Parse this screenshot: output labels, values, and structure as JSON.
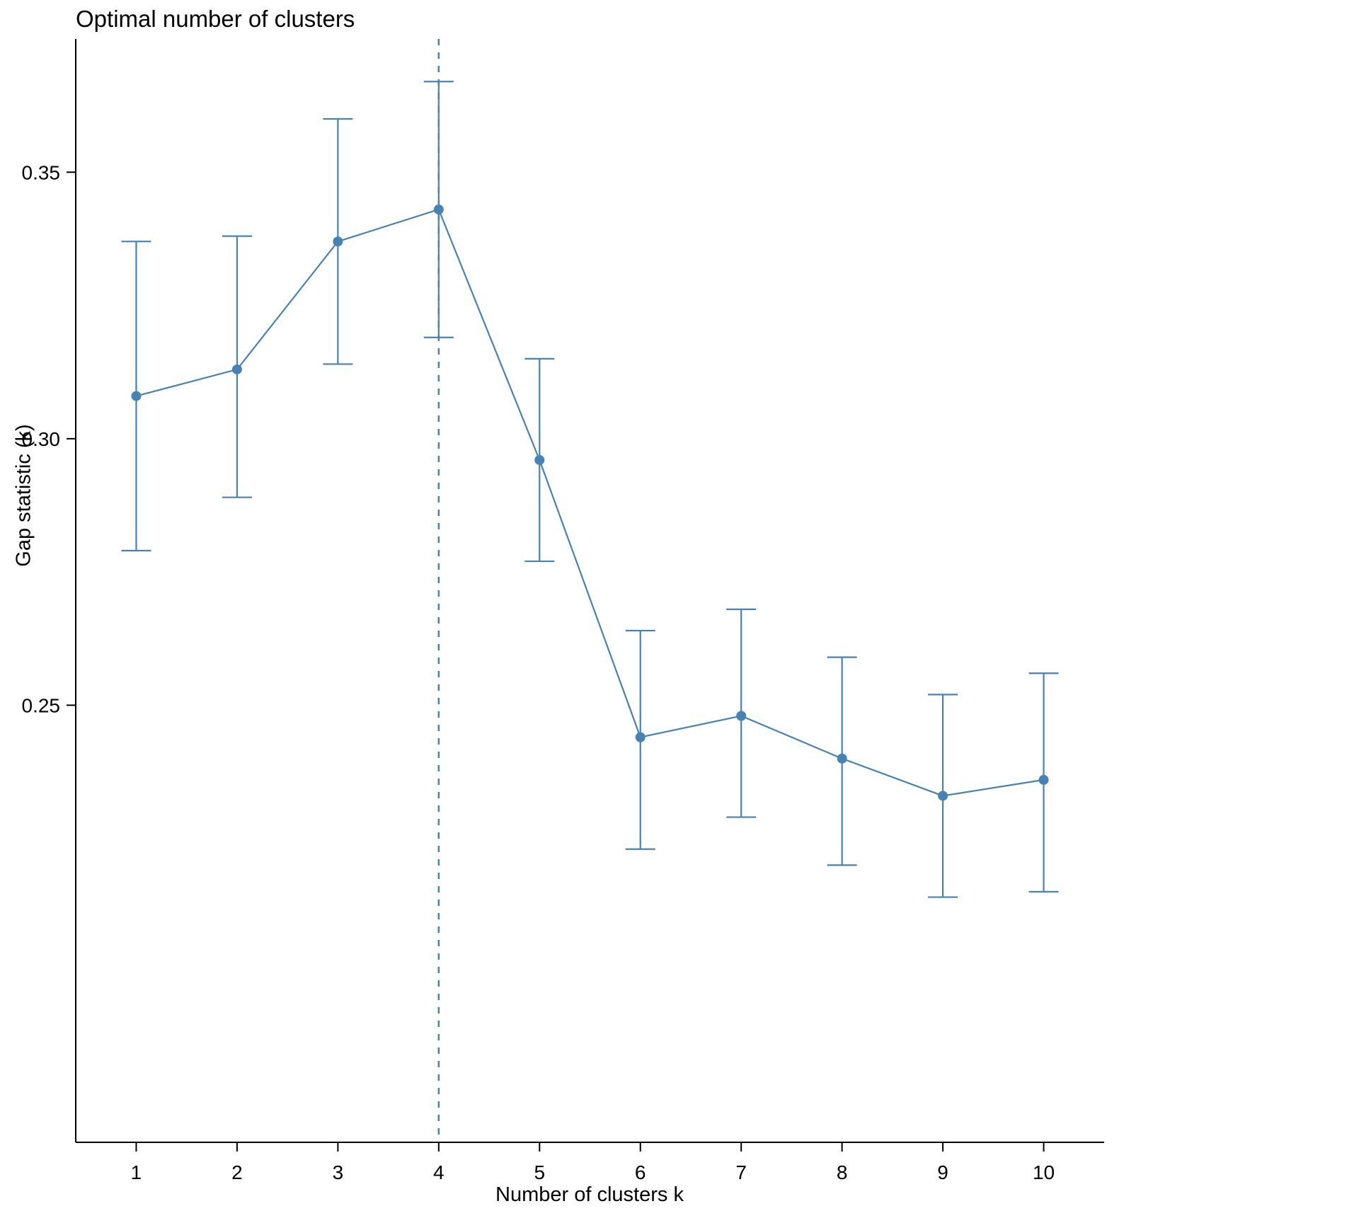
{
  "chart_data": {
    "type": "line",
    "title": "Optimal number of clusters",
    "xlabel": "Number of clusters k",
    "ylabel": "Gap statistic (k)",
    "x": [
      1,
      2,
      3,
      4,
      5,
      6,
      7,
      8,
      9,
      10
    ],
    "x_tick_labels": [
      "1",
      "2",
      "3",
      "4",
      "5",
      "6",
      "7",
      "8",
      "9",
      "10"
    ],
    "series": [
      {
        "name": "Gap statistic",
        "values": [
          0.308,
          0.313,
          0.337,
          0.343,
          0.296,
          0.244,
          0.248,
          0.24,
          0.233,
          0.236
        ],
        "ymin": [
          0.279,
          0.289,
          0.314,
          0.319,
          0.277,
          0.223,
          0.229,
          0.22,
          0.214,
          0.215
        ],
        "ymax": [
          0.337,
          0.338,
          0.36,
          0.367,
          0.315,
          0.264,
          0.268,
          0.259,
          0.252,
          0.256
        ]
      }
    ],
    "y_ticks": [
      0.25,
      0.3,
      0.35
    ],
    "y_tick_labels": [
      "0.25",
      "0.30",
      "0.35"
    ],
    "xlim": [
      0.4,
      10.6
    ],
    "ylim": [
      0.168,
      0.375
    ],
    "optimal_k": 4,
    "vline_style": "dashed",
    "line_color": "#4682B4",
    "axis_color": "#000000",
    "background": "#ffffff",
    "grid": false,
    "legend": "none",
    "error_bars": true
  }
}
